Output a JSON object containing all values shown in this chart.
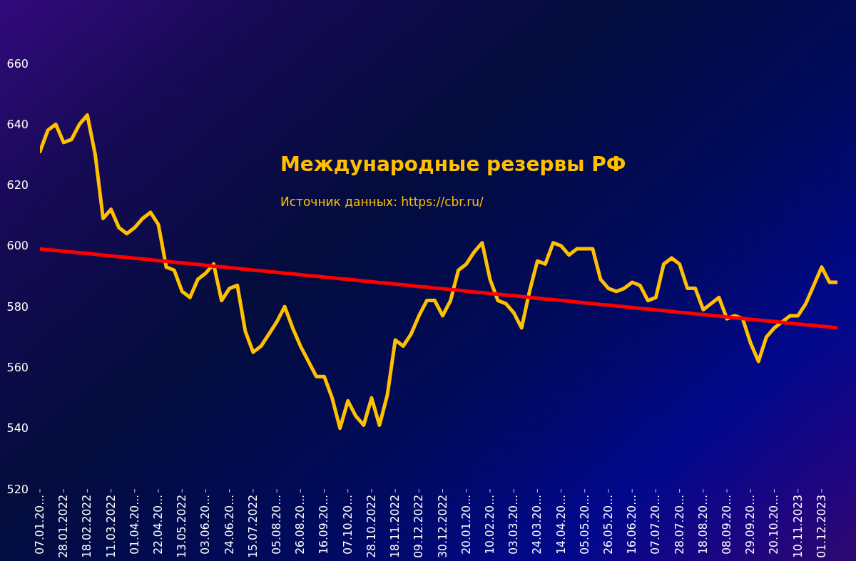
{
  "chart_data": {
    "type": "line",
    "title": "Международные резервы РФ",
    "annotations": [
      "Источник данных: https://cbr.ru/"
    ],
    "categories": [
      "07.01.20...",
      null,
      null,
      "28.01.2022",
      null,
      null,
      "18.02.2022",
      null,
      null,
      "11.03.2022",
      null,
      null,
      "01.04.20...",
      null,
      null,
      "22.04.20...",
      null,
      null,
      "13.05.2022",
      null,
      null,
      "03.06.20...",
      null,
      null,
      "24.06.20...",
      null,
      null,
      "15.07.2022",
      null,
      null,
      "05.08.20...",
      null,
      null,
      "26.08.20...",
      null,
      null,
      "16.09.20...",
      null,
      null,
      "07.10.20...",
      null,
      null,
      "28.10.2022",
      null,
      null,
      "18.11.2022",
      null,
      null,
      "09.12.2022",
      null,
      null,
      "30.12.2022",
      null,
      null,
      "20.01.20...",
      null,
      null,
      "10.02.20...",
      null,
      null,
      "03.03.20...",
      null,
      null,
      "24.03.20...",
      null,
      null,
      "14.04.20...",
      null,
      null,
      "05.05.20...",
      null,
      null,
      "26.05.20...",
      null,
      null,
      "16.06.20...",
      null,
      null,
      "07.07.20...",
      null,
      null,
      "28.07.20...",
      null,
      null,
      "18.08.20...",
      null,
      null,
      "08.09.20...",
      null,
      null,
      "29.09.20...",
      null,
      null,
      "20.10.20...",
      null,
      null,
      "10.11.2023",
      null,
      null,
      "01.12.2023",
      null,
      null
    ],
    "series": [
      {
        "color": "#ffc000",
        "values": [
          631,
          638,
          640,
          634,
          635,
          640,
          643,
          630,
          609,
          612,
          606,
          604,
          606,
          609,
          611,
          607,
          593,
          592,
          585,
          583,
          589,
          591,
          594,
          582,
          586,
          587,
          572,
          565,
          567,
          571,
          575,
          580,
          573,
          567,
          562,
          557,
          557,
          550,
          540,
          549,
          544,
          541,
          550,
          541,
          551,
          569,
          567,
          571,
          577,
          582,
          582,
          577,
          582,
          592,
          594,
          598,
          601,
          589,
          582,
          581,
          578,
          573,
          585,
          595,
          594,
          601,
          600,
          597,
          599,
          599,
          599,
          589,
          586,
          585,
          586,
          588,
          587,
          582,
          583,
          594,
          596,
          594,
          586,
          586,
          579,
          581,
          583,
          576,
          577,
          576,
          568,
          562,
          570,
          573,
          575,
          577,
          577,
          581,
          587,
          593,
          588,
          588
        ]
      },
      {
        "type": "line",
        "color": "#ff0000",
        "values": [
          599.0,
          598.7,
          598.5,
          598.2,
          598.0,
          597.7,
          597.5,
          597.2,
          596.9,
          596.7,
          596.4,
          596.2,
          595.9,
          595.7,
          595.4,
          595.1,
          594.9,
          594.6,
          594.4,
          594.1,
          593.9,
          593.6,
          593.3,
          593.1,
          592.8,
          592.6,
          592.3,
          592.0,
          591.8,
          591.5,
          591.3,
          591.0,
          590.8,
          590.5,
          590.2,
          590.0,
          589.7,
          589.5,
          589.2,
          589.0,
          588.7,
          588.4,
          588.2,
          587.9,
          587.7,
          587.4,
          587.2,
          586.9,
          586.6,
          586.4,
          586.1,
          585.9,
          585.6,
          585.4,
          585.1,
          584.8,
          584.6,
          584.3,
          584.1,
          583.8,
          583.6,
          583.3,
          583.0,
          582.8,
          582.5,
          582.3,
          582.0,
          581.8,
          581.5,
          581.2,
          581.0,
          580.7,
          580.5,
          580.2,
          580.0,
          579.7,
          579.4,
          579.2,
          578.9,
          578.7,
          578.4,
          578.1,
          577.9,
          577.6,
          577.4,
          577.1,
          576.9,
          576.6,
          576.3,
          576.1,
          575.8,
          575.6,
          575.3,
          575.1,
          574.8,
          574.5,
          574.3,
          574.0,
          573.8,
          573.5,
          573.3,
          573.0
        ]
      }
    ],
    "ylim": [
      520,
      660
    ],
    "yticks": [
      520,
      540,
      560,
      580,
      600,
      620,
      640,
      660
    ]
  }
}
